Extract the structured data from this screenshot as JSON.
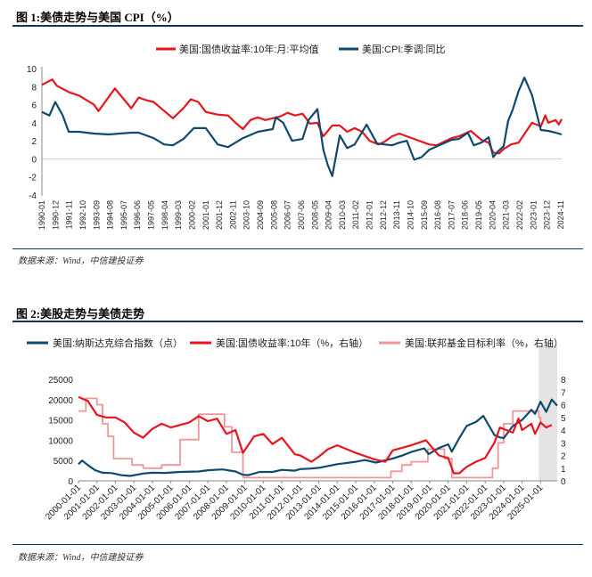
{
  "figure1": {
    "title": "图 1:美债走势与美国 CPI（%）",
    "source": "数据来源：Wind，中信建投证券"
  },
  "figure2": {
    "title": "图 2:美股走势与美债走势",
    "source": "数据来源：Wind，中信建投证券"
  },
  "chart_data": [
    {
      "type": "line",
      "title": "美债走势与美国 CPI（%）",
      "legend_position": "top",
      "y_ticks": [
        "10",
        "8",
        "6",
        "4",
        "2",
        "0",
        "-2",
        "-4"
      ],
      "ylim": [
        -4,
        10
      ],
      "x_ticks": [
        "1990-01",
        "1990-12",
        "1991-11",
        "1992-10",
        "1993-09",
        "1994-08",
        "1995-07",
        "1996-06",
        "1997-05",
        "1998-04",
        "1999-03",
        "2000-02",
        "2001-01",
        "2001-12",
        "2002-11",
        "2003-10",
        "2004-09",
        "2005-08",
        "2006-07",
        "2007-06",
        "2008-05",
        "2009-04",
        "2010-03",
        "2011-02",
        "2012-01",
        "2012-12",
        "2013-11",
        "2014-10",
        "2015-09",
        "2016-08",
        "2017-07",
        "2018-06",
        "2019-05",
        "2020-04",
        "2021-03",
        "2022-02",
        "2023-01",
        "2023-12",
        "2024-11"
      ],
      "xlim": [
        1990.0,
        2024.9
      ],
      "series": [
        {
          "name": "美国:国债收益率:10年:月:平均值",
          "color": "#e8151b",
          "x": [
            1990.0,
            1990.7,
            1991.0,
            1991.8,
            1992.5,
            1993.5,
            1993.8,
            1994.2,
            1994.9,
            1995.5,
            1996.0,
            1996.5,
            1997.0,
            1997.5,
            1998.0,
            1998.8,
            1999.5,
            2000.0,
            2000.5,
            2001.0,
            2001.8,
            2002.5,
            2003.0,
            2003.5,
            2004.0,
            2004.5,
            2005.0,
            2006.0,
            2006.5,
            2007.0,
            2007.5,
            2008.0,
            2008.5,
            2008.9,
            2009.5,
            2010.0,
            2010.5,
            2011.0,
            2011.5,
            2012.0,
            2012.6,
            2013.0,
            2013.5,
            2014.0,
            2015.0,
            2016.0,
            2016.5,
            2017.5,
            2018.0,
            2018.8,
            2019.5,
            2020.0,
            2020.3,
            2020.7,
            2021.0,
            2021.5,
            2022.0,
            2022.5,
            2022.9,
            2023.5,
            2023.8,
            2024.0,
            2024.5,
            2024.7,
            2024.9
          ],
          "values": [
            8.2,
            8.8,
            8.1,
            7.4,
            7.0,
            6.0,
            5.3,
            6.2,
            7.8,
            6.6,
            5.6,
            6.8,
            6.5,
            6.3,
            5.6,
            4.5,
            5.6,
            6.6,
            6.3,
            5.2,
            4.9,
            4.8,
            4.0,
            3.3,
            4.3,
            4.6,
            4.3,
            4.7,
            5.1,
            4.8,
            5.0,
            3.9,
            4.0,
            2.5,
            3.7,
            3.7,
            3.0,
            3.4,
            3.0,
            2.0,
            1.6,
            1.9,
            2.5,
            2.8,
            2.2,
            1.6,
            1.5,
            2.3,
            2.5,
            3.1,
            2.1,
            1.8,
            0.7,
            0.6,
            1.1,
            1.6,
            1.8,
            3.0,
            4.0,
            3.6,
            4.8,
            4.0,
            4.3,
            3.8,
            4.4
          ]
        },
        {
          "name": "美国:CPI:季调:同比",
          "color": "#0d4a6e",
          "x": [
            1990.0,
            1990.5,
            1990.9,
            1991.4,
            1991.8,
            1992.5,
            1993.5,
            1994.5,
            1995.2,
            1996.0,
            1996.5,
            1997.5,
            1998.2,
            1998.8,
            1999.5,
            2000.2,
            2001.0,
            2001.8,
            2002.5,
            2003.5,
            2004.5,
            2005.5,
            2005.7,
            2006.2,
            2006.8,
            2007.5,
            2007.9,
            2008.5,
            2008.9,
            2009.2,
            2009.5,
            2010.0,
            2010.5,
            2011.0,
            2011.8,
            2012.5,
            2013.5,
            2014.0,
            2014.5,
            2015.0,
            2015.5,
            2016.0,
            2016.8,
            2017.5,
            2018.0,
            2018.6,
            2019.0,
            2019.5,
            2020.0,
            2020.3,
            2020.6,
            2021.0,
            2021.3,
            2021.6,
            2022.0,
            2022.4,
            2022.9,
            2023.5,
            2024.0,
            2024.5,
            2024.9
          ],
          "values": [
            5.2,
            4.8,
            6.3,
            4.8,
            3.0,
            3.0,
            2.8,
            2.7,
            2.8,
            2.9,
            2.9,
            2.3,
            1.6,
            1.5,
            2.2,
            3.4,
            3.4,
            1.6,
            1.3,
            2.3,
            3.0,
            3.3,
            4.6,
            4.0,
            2.0,
            2.2,
            4.3,
            5.5,
            1.0,
            -0.7,
            -1.9,
            2.6,
            1.2,
            1.6,
            3.8,
            1.7,
            1.5,
            1.8,
            2.0,
            -0.1,
            0.2,
            1.0,
            1.6,
            2.1,
            2.2,
            2.9,
            1.5,
            1.8,
            2.4,
            0.2,
            0.8,
            1.4,
            4.2,
            5.4,
            7.5,
            9.0,
            7.1,
            3.2,
            3.1,
            2.9,
            2.7
          ]
        }
      ]
    },
    {
      "type": "line",
      "title": "美股走势与美债走势",
      "legend_position": "top",
      "y_ticks_left": [
        "25000",
        "20000",
        "15000",
        "10000",
        "5000",
        "0"
      ],
      "ylim_left": [
        0,
        25000
      ],
      "y_ticks_right": [
        "8",
        "7",
        "6",
        "5",
        "4",
        "3",
        "2",
        "1",
        "0"
      ],
      "ylim_right": [
        0,
        8
      ],
      "x_ticks": [
        "2000-01-01",
        "2001-01-01",
        "2002-01-01",
        "2003-01-01",
        "2004-01-01",
        "2005-01-01",
        "2006-01-01",
        "2007-01-01",
        "2008-01-01",
        "2009-01-01",
        "2010-01-01",
        "2011-01-01",
        "2012-01-01",
        "2013-01-01",
        "2014-01-01",
        "2015-01-01",
        "2016-01-01",
        "2017-01-01",
        "2018-01-01",
        "2019-01-01",
        "2020-01-01",
        "2021-01-01",
        "2022-01-01",
        "2023-01-01",
        "2024-01-01",
        "2025-01-01"
      ],
      "xlim": [
        2000.0,
        2025.9
      ],
      "shaded_region": [
        2024.9,
        2025.9
      ],
      "series": [
        {
          "name": "美国:纳斯达克综合指数（点）",
          "axis": "left",
          "color": "#0d4a6e",
          "x": [
            2000.0,
            2000.2,
            2000.5,
            2000.9,
            2001.3,
            2001.8,
            2002.3,
            2002.8,
            2003.5,
            2004.0,
            2004.7,
            2005.5,
            2006.5,
            2007.0,
            2007.8,
            2008.5,
            2008.9,
            2009.2,
            2009.8,
            2010.5,
            2011.0,
            2011.7,
            2012.0,
            2012.5,
            2013.0,
            2014.0,
            2015.0,
            2015.5,
            2016.1,
            2017.0,
            2017.5,
            2018.0,
            2018.7,
            2018.95,
            2019.5,
            2020.0,
            2020.2,
            2020.6,
            2021.0,
            2021.5,
            2021.9,
            2022.5,
            2022.8,
            2023.0,
            2023.5,
            2024.0,
            2024.5,
            2024.7,
            2025.0,
            2025.3,
            2025.6,
            2025.9
          ],
          "values": [
            4100,
            5000,
            3900,
            2600,
            2000,
            1900,
            1400,
            1200,
            1800,
            2000,
            1950,
            2200,
            2300,
            2600,
            2800,
            2300,
            1500,
            1400,
            2200,
            2200,
            2700,
            2500,
            2900,
            3000,
            3200,
            4100,
            4700,
            5100,
            4500,
            5500,
            6200,
            7100,
            8000,
            6600,
            8100,
            9000,
            7200,
            10500,
            13500,
            14500,
            16000,
            11300,
            10700,
            10500,
            13500,
            15000,
            17500,
            16500,
            19500,
            17000,
            20000,
            18500
          ]
        },
        {
          "name": "美国:国债收益率:10年（%，右轴）",
          "axis": "right",
          "color": "#e8151b",
          "x": [
            2000.0,
            2000.5,
            2001.0,
            2001.5,
            2002.0,
            2002.5,
            2003.0,
            2003.5,
            2004.0,
            2004.5,
            2005.0,
            2006.0,
            2006.5,
            2007.0,
            2007.5,
            2008.0,
            2008.5,
            2008.9,
            2009.5,
            2010.0,
            2010.5,
            2011.0,
            2011.7,
            2012.0,
            2012.6,
            2013.0,
            2013.5,
            2014.0,
            2015.0,
            2016.0,
            2016.6,
            2017.0,
            2018.0,
            2018.8,
            2019.5,
            2020.0,
            2020.3,
            2020.6,
            2021.0,
            2021.5,
            2022.0,
            2022.5,
            2022.8,
            2023.5,
            2023.8,
            2024.0,
            2024.5,
            2024.7,
            2025.0,
            2025.3,
            2025.6
          ],
          "values": [
            6.6,
            6.3,
            5.2,
            5.0,
            5.0,
            4.6,
            3.8,
            3.4,
            4.1,
            4.5,
            4.2,
            4.6,
            5.1,
            4.7,
            4.9,
            3.7,
            4.0,
            2.2,
            3.5,
            3.7,
            2.9,
            3.4,
            2.1,
            2.0,
            1.5,
            1.9,
            2.5,
            2.8,
            2.2,
            1.7,
            1.5,
            2.4,
            2.8,
            3.2,
            2.0,
            1.8,
            0.6,
            0.6,
            1.1,
            1.5,
            1.8,
            3.0,
            4.2,
            3.8,
            4.9,
            4.0,
            4.5,
            3.7,
            4.6,
            4.2,
            4.4
          ]
        },
        {
          "name": "美国:联邦基金目标利率（%，右轴）",
          "axis": "right",
          "color": "#f0959a",
          "x": [
            2000.0,
            2000.4,
            2001.0,
            2001.3,
            2001.6,
            2001.9,
            2002.9,
            2003.5,
            2004.5,
            2005.5,
            2006.5,
            2007.6,
            2007.9,
            2008.3,
            2008.9,
            2015.9,
            2016.9,
            2017.5,
            2018.0,
            2018.9,
            2019.5,
            2019.8,
            2020.2,
            2022.2,
            2022.4,
            2022.7,
            2023.0,
            2023.5,
            2024.7,
            2024.9,
            2025.0
          ],
          "values": [
            5.5,
            6.5,
            6.0,
            4.5,
            3.5,
            1.75,
            1.25,
            1.0,
            1.25,
            3.25,
            5.25,
            5.25,
            4.25,
            2.25,
            0.25,
            0.25,
            0.75,
            1.25,
            1.5,
            2.5,
            2.5,
            1.75,
            0.25,
            0.25,
            1.0,
            3.0,
            4.5,
            5.5,
            5.5,
            5.0,
            4.5
          ]
        }
      ]
    }
  ]
}
